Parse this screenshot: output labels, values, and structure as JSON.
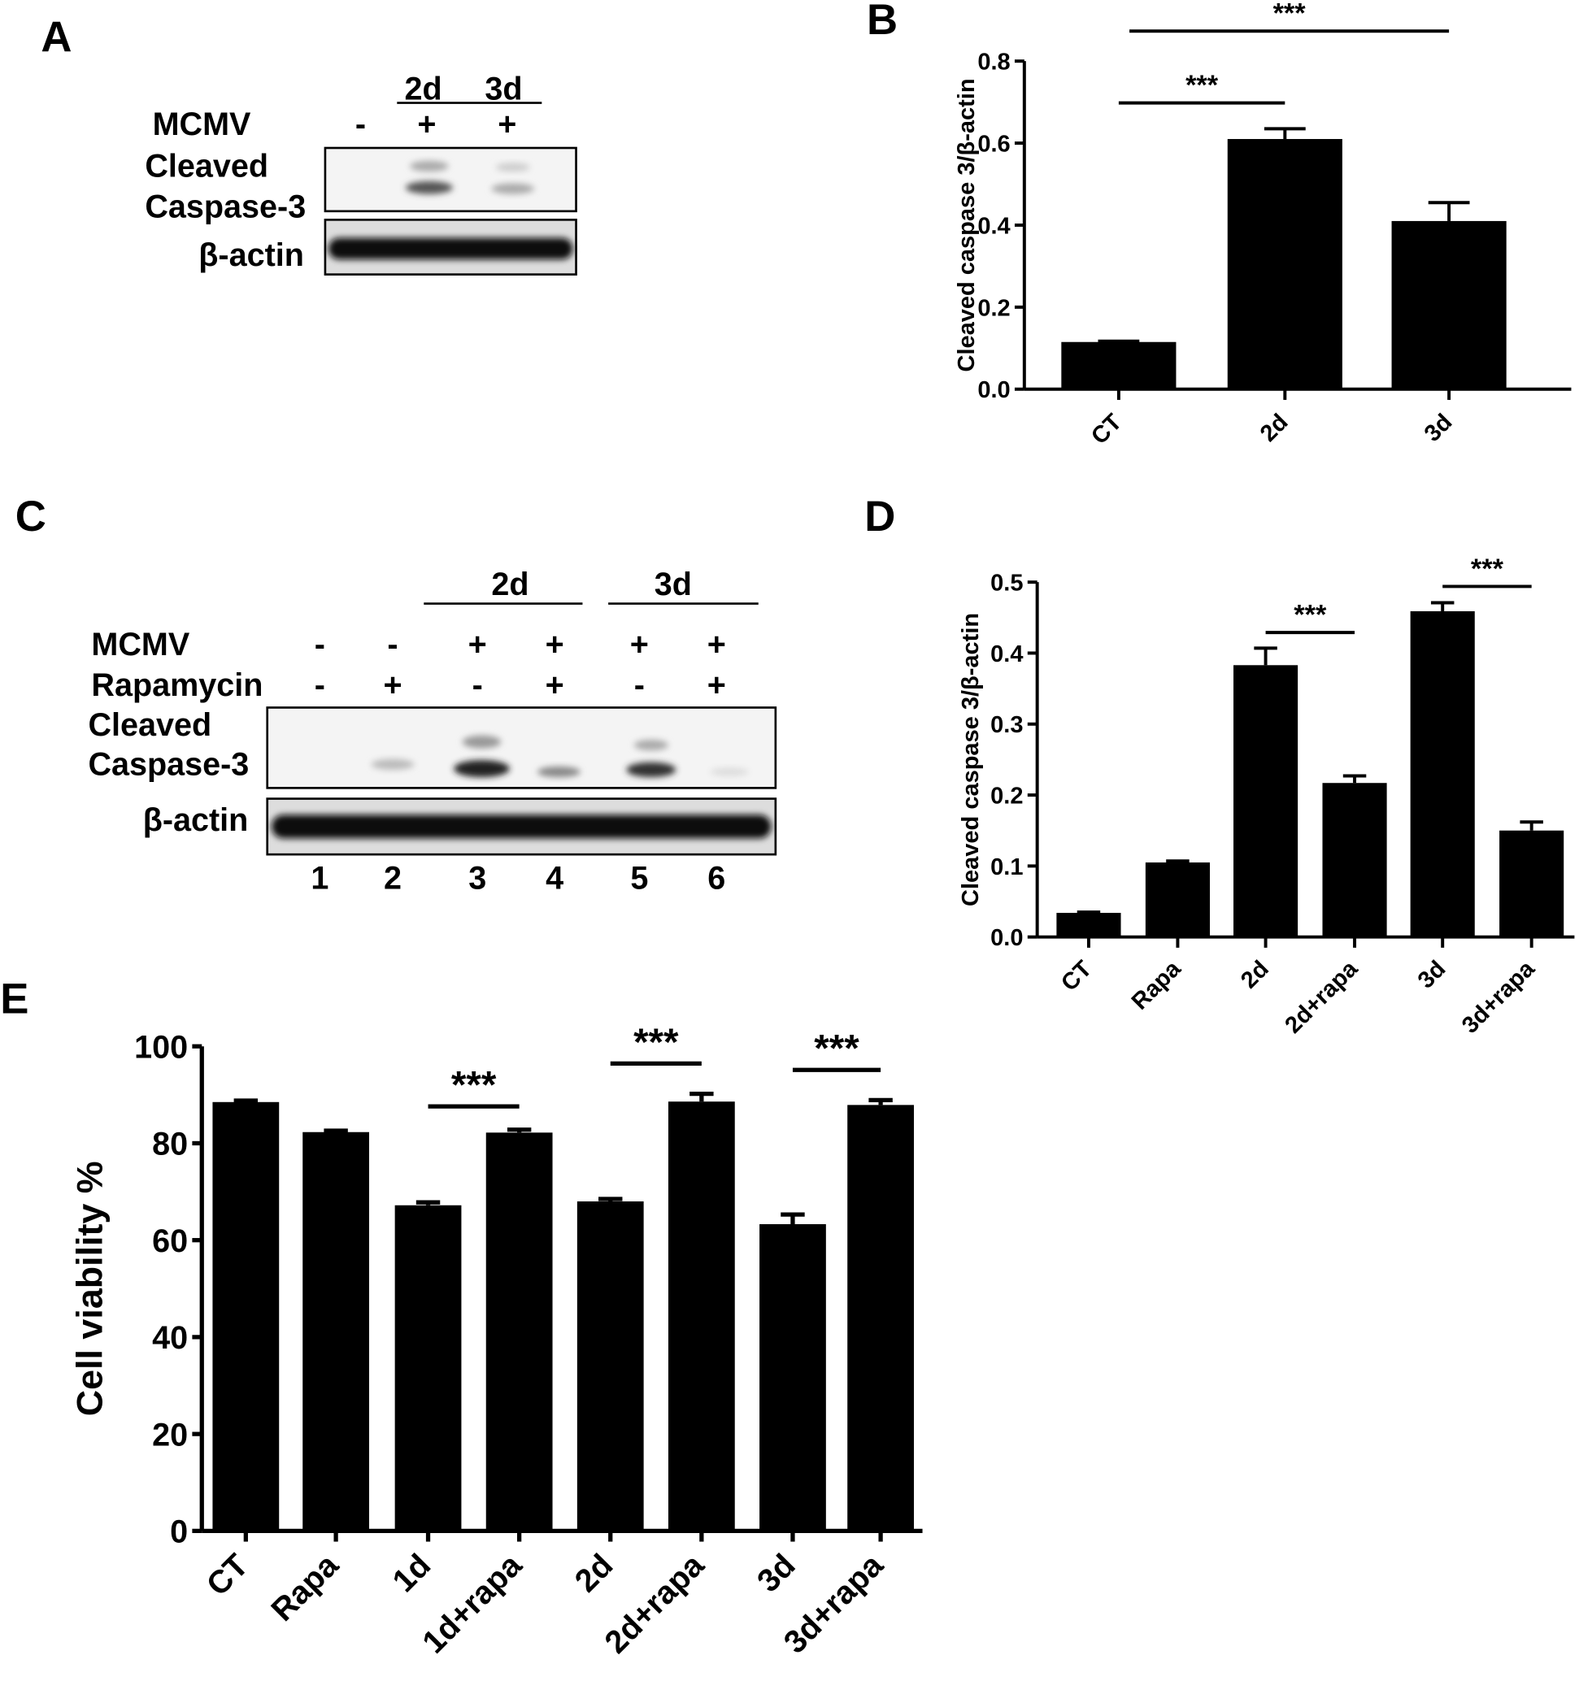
{
  "panels": {
    "a": "A",
    "b": "B",
    "c": "C",
    "d": "D",
    "e": "E"
  },
  "blot_a": {
    "groups": [
      "2d",
      "3d"
    ],
    "row_label": "MCMV",
    "signs": [
      "-",
      "+",
      "+"
    ],
    "band_label_1": "Cleaved",
    "band_label_2": "Caspase-3",
    "loading_label": "β-actin"
  },
  "blot_c": {
    "groups": [
      "2d",
      "3d"
    ],
    "row1_label": "MCMV",
    "row1_signs": [
      "-",
      "-",
      "+",
      "+",
      "+",
      "+"
    ],
    "row2_label": "Rapamycin",
    "row2_signs": [
      "-",
      "+",
      "-",
      "+",
      "-",
      "+"
    ],
    "band_label_1": "Cleaved",
    "band_label_2": "Caspase-3",
    "loading_label": "β-actin",
    "lanes": [
      "1",
      "2",
      "3",
      "4",
      "5",
      "6"
    ]
  },
  "chart_data": [
    {
      "id": "B",
      "type": "bar",
      "title": "",
      "xlabel": "",
      "ylabel": "Cleaved caspase 3/β-actin",
      "ylim": [
        0,
        0.8
      ],
      "yticks": [
        "0.0",
        "0.2",
        "0.4",
        "0.6",
        "0.8"
      ],
      "categories": [
        "CT",
        "2d",
        "3d"
      ],
      "values": [
        0.115,
        0.61,
        0.41
      ],
      "errors": [
        0.002,
        0.025,
        0.045
      ],
      "significance": [
        {
          "from": "CT",
          "to": "2d",
          "label": "***"
        },
        {
          "from": "CT",
          "to": "3d",
          "label": "***"
        }
      ],
      "color": "#000000"
    },
    {
      "id": "D",
      "type": "bar",
      "title": "",
      "xlabel": "",
      "ylabel": "Cleaved caspase 3/β-actin",
      "ylim": [
        0,
        0.5
      ],
      "yticks": [
        "0.0",
        "0.1",
        "0.2",
        "0.3",
        "0.4",
        "0.5"
      ],
      "categories": [
        "CT",
        "Rapa",
        "2d",
        "2d+rapa",
        "3d",
        "3d+rapa"
      ],
      "values": [
        0.034,
        0.105,
        0.383,
        0.217,
        0.459,
        0.15
      ],
      "errors": [
        0.001,
        0.002,
        0.024,
        0.01,
        0.012,
        0.012
      ],
      "significance": [
        {
          "from": "2d",
          "to": "2d+rapa",
          "label": "***"
        },
        {
          "from": "3d",
          "to": "3d+rapa",
          "label": "***"
        }
      ],
      "color": "#000000"
    },
    {
      "id": "E",
      "type": "bar",
      "title": "",
      "xlabel": "",
      "ylabel": "Cell viability %",
      "ylim": [
        0,
        100
      ],
      "yticks": [
        "0",
        "20",
        "40",
        "60",
        "80",
        "100"
      ],
      "categories": [
        "CT",
        "Rapa",
        "1d",
        "1d+rapa",
        "2d",
        "2d+rapa",
        "3d",
        "3d+rapa"
      ],
      "values": [
        88.5,
        82.3,
        67.2,
        82.2,
        68.0,
        88.6,
        63.3,
        87.9
      ],
      "errors": [
        0.3,
        0.3,
        0.6,
        0.6,
        0.5,
        1.6,
        2.0,
        1.0
      ],
      "significance": [
        {
          "from": "1d",
          "to": "1d+rapa",
          "label": "***"
        },
        {
          "from": "2d",
          "to": "2d+rapa",
          "label": "***"
        },
        {
          "from": "3d",
          "to": "3d+rapa",
          "label": "***"
        }
      ],
      "color": "#000000"
    }
  ]
}
